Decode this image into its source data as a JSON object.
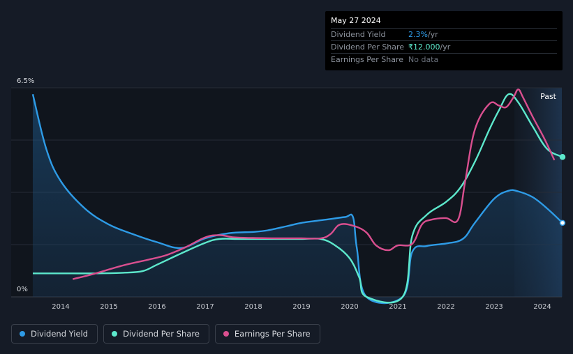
{
  "tooltip": {
    "date": "May 27 2024",
    "rows": [
      {
        "label": "Dividend Yield",
        "value": "2.3%",
        "unit": " /yr"
      },
      {
        "label": "Dividend Per Share",
        "value": "₹12.000",
        "unit": " /yr"
      },
      {
        "label": "Earnings Per Share",
        "value": "No data",
        "unit": ""
      }
    ]
  },
  "legend": [
    {
      "label": "Dividend Yield",
      "color": "#2e9be6"
    },
    {
      "label": "Dividend Per Share",
      "color": "#5de8cc"
    },
    {
      "label": "Earnings Per Share",
      "color": "#d94f8f"
    }
  ],
  "chart_data": {
    "type": "line",
    "title": "",
    "y_top_label": "6.5%",
    "y_bottom_label": "0%",
    "past_label": "Past",
    "xlim": [
      2013.4,
      2024.42
    ],
    "ylim": [
      0,
      6.5
    ],
    "x_ticks": [
      {
        "value": 2014,
        "label": "2014"
      },
      {
        "value": 2015,
        "label": "2015"
      },
      {
        "value": 2016,
        "label": "2016"
      },
      {
        "value": 2017,
        "label": "2017"
      },
      {
        "value": 2018,
        "label": "2018"
      },
      {
        "value": 2019,
        "label": "2019"
      },
      {
        "value": 2020,
        "label": "2020"
      },
      {
        "value": 2021,
        "label": "2021"
      },
      {
        "value": 2022,
        "label": "2022"
      },
      {
        "value": 2023,
        "label": "2023"
      },
      {
        "value": 2024,
        "label": "2024"
      }
    ],
    "past_start_x": 2023.42,
    "series": [
      {
        "name": "Dividend Yield",
        "color": "#2e9be6",
        "fill": true,
        "points": [
          [
            2013.42,
            6.3
          ],
          [
            2013.7,
            4.6
          ],
          [
            2014.0,
            3.6
          ],
          [
            2014.5,
            2.75
          ],
          [
            2015.0,
            2.25
          ],
          [
            2015.5,
            1.95
          ],
          [
            2016.0,
            1.7
          ],
          [
            2016.5,
            1.52
          ],
          [
            2017.0,
            1.82
          ],
          [
            2017.5,
            1.98
          ],
          [
            2018.0,
            2.02
          ],
          [
            2018.3,
            2.07
          ],
          [
            2018.7,
            2.2
          ],
          [
            2019.0,
            2.3
          ],
          [
            2019.5,
            2.4
          ],
          [
            2019.9,
            2.48
          ],
          [
            2020.07,
            2.48
          ],
          [
            2020.15,
            1.5
          ],
          [
            2020.35,
            0.0
          ],
          [
            2021.1,
            0.0
          ],
          [
            2021.3,
            1.4
          ],
          [
            2021.6,
            1.58
          ],
          [
            2022.0,
            1.66
          ],
          [
            2022.35,
            1.8
          ],
          [
            2022.6,
            2.3
          ],
          [
            2023.0,
            3.05
          ],
          [
            2023.3,
            3.3
          ],
          [
            2023.5,
            3.28
          ],
          [
            2023.8,
            3.1
          ],
          [
            2024.1,
            2.75
          ],
          [
            2024.42,
            2.3
          ]
        ]
      },
      {
        "name": "Dividend Per Share",
        "color": "#5de8cc",
        "fill": false,
        "points": [
          [
            2013.42,
            0.73
          ],
          [
            2014.0,
            0.73
          ],
          [
            2014.7,
            0.73
          ],
          [
            2015.3,
            0.75
          ],
          [
            2015.7,
            0.8
          ],
          [
            2016.0,
            1.0
          ],
          [
            2016.5,
            1.35
          ],
          [
            2017.0,
            1.68
          ],
          [
            2017.3,
            1.8
          ],
          [
            2017.7,
            1.8
          ],
          [
            2018.5,
            1.8
          ],
          [
            2019.0,
            1.8
          ],
          [
            2019.4,
            1.8
          ],
          [
            2019.7,
            1.6
          ],
          [
            2020.0,
            1.2
          ],
          [
            2020.2,
            0.6
          ],
          [
            2020.35,
            0.0
          ],
          [
            2021.1,
            0.0
          ],
          [
            2021.3,
            1.9
          ],
          [
            2021.6,
            2.55
          ],
          [
            2022.0,
            2.95
          ],
          [
            2022.3,
            3.4
          ],
          [
            2022.6,
            4.2
          ],
          [
            2022.9,
            5.2
          ],
          [
            2023.1,
            5.8
          ],
          [
            2023.3,
            6.3
          ],
          [
            2023.5,
            6.05
          ],
          [
            2023.8,
            5.3
          ],
          [
            2024.1,
            4.6
          ],
          [
            2024.42,
            4.35
          ]
        ]
      },
      {
        "name": "Earnings Per Share",
        "color": "#d94f8f",
        "fill": false,
        "points": [
          [
            2014.25,
            0.55
          ],
          [
            2014.7,
            0.72
          ],
          [
            2015.3,
            0.98
          ],
          [
            2015.8,
            1.15
          ],
          [
            2016.2,
            1.3
          ],
          [
            2016.6,
            1.55
          ],
          [
            2017.0,
            1.85
          ],
          [
            2017.3,
            1.92
          ],
          [
            2017.6,
            1.85
          ],
          [
            2018.0,
            1.83
          ],
          [
            2018.5,
            1.82
          ],
          [
            2019.0,
            1.82
          ],
          [
            2019.4,
            1.82
          ],
          [
            2019.6,
            1.95
          ],
          [
            2019.8,
            2.25
          ],
          [
            2020.1,
            2.2
          ],
          [
            2020.35,
            2.0
          ],
          [
            2020.55,
            1.6
          ],
          [
            2020.8,
            1.45
          ],
          [
            2021.0,
            1.6
          ],
          [
            2021.3,
            1.65
          ],
          [
            2021.5,
            2.25
          ],
          [
            2021.7,
            2.4
          ],
          [
            2022.0,
            2.45
          ],
          [
            2022.25,
            2.4
          ],
          [
            2022.4,
            3.6
          ],
          [
            2022.6,
            5.2
          ],
          [
            2022.9,
            6.0
          ],
          [
            2023.1,
            5.95
          ],
          [
            2023.25,
            5.9
          ],
          [
            2023.4,
            6.2
          ],
          [
            2023.5,
            6.45
          ],
          [
            2023.6,
            6.2
          ],
          [
            2023.8,
            5.6
          ],
          [
            2024.05,
            4.9
          ],
          [
            2024.25,
            4.25
          ]
        ]
      }
    ]
  }
}
